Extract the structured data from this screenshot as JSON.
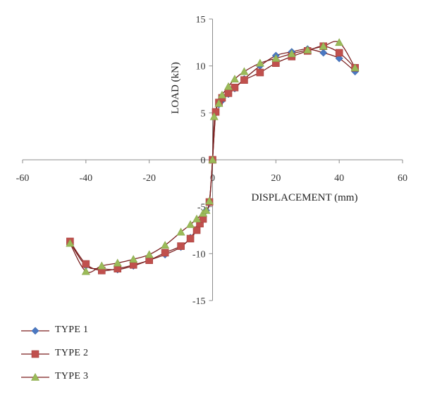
{
  "chart_data": {
    "type": "scatter",
    "title": "",
    "xlabel": "DISPLACEMENT (mm)",
    "ylabel": "LOAD (kN)",
    "xlim": [
      -60,
      60
    ],
    "ylim": [
      -15,
      15
    ],
    "x_ticks": [
      "-60",
      "-40",
      "-20",
      "0",
      "20",
      "40",
      "60"
    ],
    "y_ticks": [
      "15",
      "10",
      "5",
      "0",
      "-5",
      "-10",
      "-15"
    ],
    "grid": false,
    "legend_position": "bottom-left",
    "line_color": "#7a1f1f",
    "series": [
      {
        "name": "TYPE 1",
        "marker": "diamond",
        "color": "#4a78c2",
        "points": [
          [
            -45,
            -8.8
          ],
          [
            -40,
            -11.3
          ],
          [
            -35,
            -11.6
          ],
          [
            -30,
            -11.7
          ],
          [
            -25,
            -11.3
          ],
          [
            -20,
            -10.7
          ],
          [
            -15,
            -10.1
          ],
          [
            -10,
            -9.3
          ],
          [
            -7,
            -8.3
          ],
          [
            -5,
            -7.4
          ],
          [
            -4,
            -6.8
          ],
          [
            -3,
            -6.1
          ],
          [
            -2,
            -5.4
          ],
          [
            -1,
            -4.6
          ],
          [
            0,
            0
          ],
          [
            1,
            5.0
          ],
          [
            2,
            5.9
          ],
          [
            3,
            6.3
          ],
          [
            5,
            7.0
          ],
          [
            7,
            7.6
          ],
          [
            10,
            8.6
          ],
          [
            15,
            10.0
          ],
          [
            20,
            11.1
          ],
          [
            25,
            11.5
          ],
          [
            30,
            11.8
          ],
          [
            35,
            11.4
          ],
          [
            40,
            10.8
          ],
          [
            45,
            9.4
          ]
        ]
      },
      {
        "name": "TYPE 2",
        "marker": "square",
        "color": "#c0504d",
        "points": [
          [
            -45,
            -8.7
          ],
          [
            -40,
            -11.1
          ],
          [
            -35,
            -11.8
          ],
          [
            -30,
            -11.6
          ],
          [
            -25,
            -11.2
          ],
          [
            -20,
            -10.7
          ],
          [
            -15,
            -9.9
          ],
          [
            -10,
            -9.2
          ],
          [
            -7,
            -8.4
          ],
          [
            -5,
            -7.5
          ],
          [
            -4,
            -6.8
          ],
          [
            -3,
            -6.3
          ],
          [
            -1,
            -4.5
          ],
          [
            0,
            0
          ],
          [
            1,
            5.1
          ],
          [
            2,
            6.1
          ],
          [
            3,
            6.6
          ],
          [
            5,
            7.1
          ],
          [
            7,
            7.7
          ],
          [
            10,
            8.5
          ],
          [
            15,
            9.3
          ],
          [
            20,
            10.3
          ],
          [
            25,
            11.0
          ],
          [
            30,
            11.6
          ],
          [
            35,
            12.1
          ],
          [
            40,
            11.4
          ],
          [
            45,
            9.8
          ]
        ]
      },
      {
        "name": "TYPE 3",
        "marker": "triangle",
        "color": "#9bbb59",
        "points": [
          [
            -45,
            -8.9
          ],
          [
            -40,
            -11.9
          ],
          [
            -35,
            -11.3
          ],
          [
            -30,
            -11.0
          ],
          [
            -25,
            -10.6
          ],
          [
            -20,
            -10.1
          ],
          [
            -15,
            -9.1
          ],
          [
            -10,
            -7.7
          ],
          [
            -7,
            -6.9
          ],
          [
            -5,
            -6.3
          ],
          [
            -3,
            -5.7
          ],
          [
            -2,
            -5.4
          ],
          [
            -1,
            -4.4
          ],
          [
            0,
            0
          ],
          [
            0.5,
            4.6
          ],
          [
            2,
            6.0
          ],
          [
            3,
            6.9
          ],
          [
            5,
            7.8
          ],
          [
            7,
            8.6
          ],
          [
            10,
            9.4
          ],
          [
            15,
            10.3
          ],
          [
            20,
            10.8
          ],
          [
            25,
            11.3
          ],
          [
            30,
            11.7
          ],
          [
            35,
            12.1
          ],
          [
            40,
            12.5
          ],
          [
            45,
            9.8
          ]
        ]
      }
    ]
  }
}
